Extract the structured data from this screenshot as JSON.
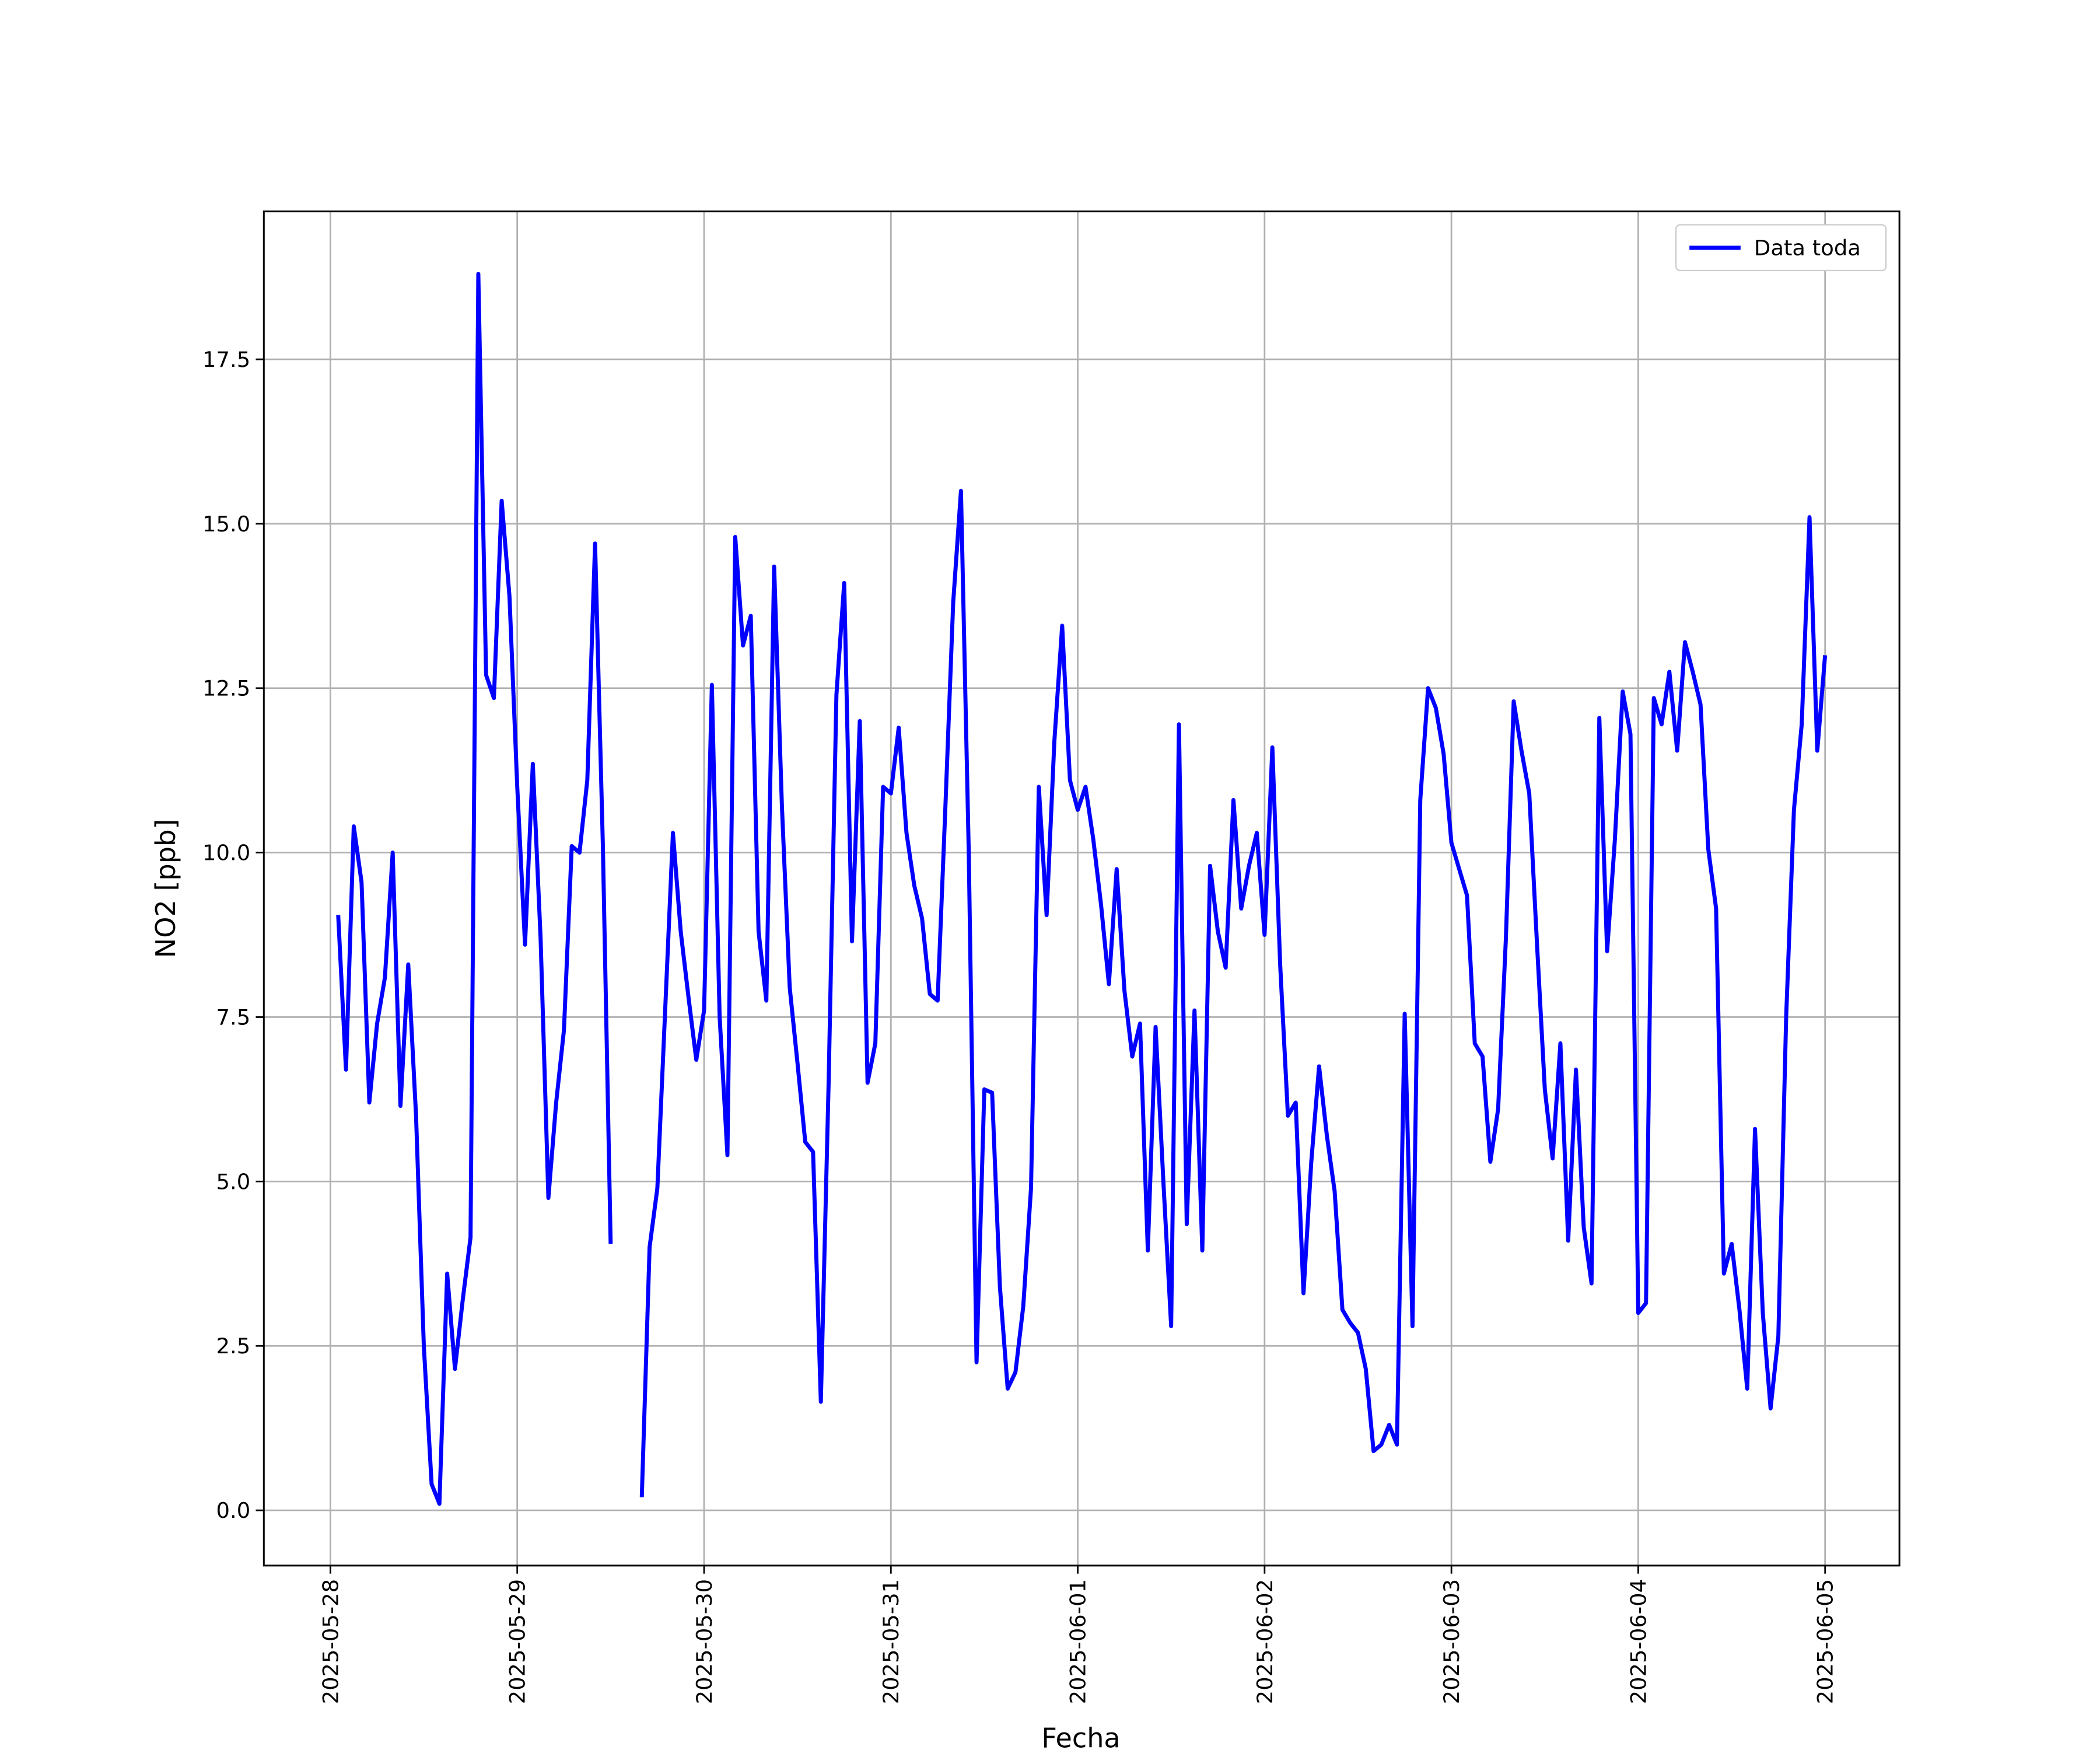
{
  "chart_data": {
    "type": "line",
    "xlabel": "Fecha",
    "ylabel": "NO2 [ppb]",
    "x": [
      "2025-05-28 01:00",
      "2025-05-28 02:00",
      "2025-05-28 03:00",
      "2025-05-28 04:00",
      "2025-05-28 05:00",
      "2025-05-28 06:00",
      "2025-05-28 07:00",
      "2025-05-28 08:00",
      "2025-05-28 09:00",
      "2025-05-28 10:00",
      "2025-05-28 11:00",
      "2025-05-28 12:00",
      "2025-05-28 13:00",
      "2025-05-28 14:00",
      "2025-05-28 15:00",
      "2025-05-28 16:00",
      "2025-05-28 17:00",
      "2025-05-28 18:00",
      "2025-05-28 19:00",
      "2025-05-28 20:00",
      "2025-05-28 21:00",
      "2025-05-28 22:00",
      "2025-05-28 23:00",
      "2025-05-29 00:00",
      "2025-05-29 01:00",
      "2025-05-29 02:00",
      "2025-05-29 03:00",
      "2025-05-29 04:00",
      "2025-05-29 05:00",
      "2025-05-29 06:00",
      "2025-05-29 07:00",
      "2025-05-29 08:00",
      "2025-05-29 09:00",
      "2025-05-29 10:00",
      "2025-05-29 11:00",
      "2025-05-29 12:00",
      "2025-05-29 13:00",
      "2025-05-29 14:00",
      "2025-05-29 15:00",
      "2025-05-29 16:00",
      "2025-05-29 17:00",
      "2025-05-29 18:00",
      "2025-05-29 19:00",
      "2025-05-29 20:00",
      "2025-05-29 21:00",
      "2025-05-29 22:00",
      "2025-05-29 23:00",
      "2025-05-30 00:00",
      "2025-05-30 01:00",
      "2025-05-30 02:00",
      "2025-05-30 03:00",
      "2025-05-30 04:00",
      "2025-05-30 05:00",
      "2025-05-30 06:00",
      "2025-05-30 07:00",
      "2025-05-30 08:00",
      "2025-05-30 09:00",
      "2025-05-30 10:00",
      "2025-05-30 11:00",
      "2025-05-30 12:00",
      "2025-05-30 13:00",
      "2025-05-30 14:00",
      "2025-05-30 15:00",
      "2025-05-30 16:00",
      "2025-05-30 17:00",
      "2025-05-30 18:00",
      "2025-05-30 19:00",
      "2025-05-30 20:00",
      "2025-05-30 21:00",
      "2025-05-30 22:00",
      "2025-05-30 23:00",
      "2025-05-31 00:00",
      "2025-05-31 01:00",
      "2025-05-31 02:00",
      "2025-05-31 03:00",
      "2025-05-31 04:00",
      "2025-05-31 05:00",
      "2025-05-31 06:00",
      "2025-05-31 07:00",
      "2025-05-31 08:00",
      "2025-05-31 09:00",
      "2025-05-31 10:00",
      "2025-05-31 11:00",
      "2025-05-31 12:00",
      "2025-05-31 13:00",
      "2025-05-31 14:00",
      "2025-05-31 15:00",
      "2025-05-31 16:00",
      "2025-05-31 17:00",
      "2025-05-31 18:00",
      "2025-05-31 19:00",
      "2025-05-31 20:00",
      "2025-05-31 21:00",
      "2025-05-31 22:00",
      "2025-05-31 23:00",
      "2025-06-01 00:00",
      "2025-06-01 01:00",
      "2025-06-01 02:00",
      "2025-06-01 03:00",
      "2025-06-01 04:00",
      "2025-06-01 05:00",
      "2025-06-01 06:00",
      "2025-06-01 07:00",
      "2025-06-01 08:00",
      "2025-06-01 09:00",
      "2025-06-01 10:00",
      "2025-06-01 11:00",
      "2025-06-01 12:00",
      "2025-06-01 13:00",
      "2025-06-01 14:00",
      "2025-06-01 15:00",
      "2025-06-01 16:00",
      "2025-06-01 17:00",
      "2025-06-01 18:00",
      "2025-06-01 19:00",
      "2025-06-01 20:00",
      "2025-06-01 21:00",
      "2025-06-01 22:00",
      "2025-06-01 23:00",
      "2025-06-02 00:00",
      "2025-06-02 01:00",
      "2025-06-02 02:00",
      "2025-06-02 03:00",
      "2025-06-02 04:00",
      "2025-06-02 05:00",
      "2025-06-02 06:00",
      "2025-06-02 07:00",
      "2025-06-02 08:00",
      "2025-06-02 09:00",
      "2025-06-02 10:00",
      "2025-06-02 11:00",
      "2025-06-02 12:00",
      "2025-06-02 13:00",
      "2025-06-02 14:00",
      "2025-06-02 15:00",
      "2025-06-02 16:00",
      "2025-06-02 17:00",
      "2025-06-02 18:00",
      "2025-06-02 19:00",
      "2025-06-02 20:00",
      "2025-06-02 21:00",
      "2025-06-02 22:00",
      "2025-06-02 23:00",
      "2025-06-03 00:00",
      "2025-06-03 01:00",
      "2025-06-03 02:00",
      "2025-06-03 03:00",
      "2025-06-03 04:00",
      "2025-06-03 05:00",
      "2025-06-03 06:00",
      "2025-06-03 07:00",
      "2025-06-03 08:00",
      "2025-06-03 09:00",
      "2025-06-03 10:00",
      "2025-06-03 11:00",
      "2025-06-03 12:00",
      "2025-06-03 13:00",
      "2025-06-03 14:00",
      "2025-06-03 15:00",
      "2025-06-03 16:00",
      "2025-06-03 17:00",
      "2025-06-03 18:00",
      "2025-06-03 19:00",
      "2025-06-03 20:00",
      "2025-06-03 21:00",
      "2025-06-03 22:00",
      "2025-06-03 23:00",
      "2025-06-04 00:00",
      "2025-06-04 01:00",
      "2025-06-04 02:00",
      "2025-06-04 03:00",
      "2025-06-04 04:00",
      "2025-06-04 05:00",
      "2025-06-04 06:00",
      "2025-06-04 07:00",
      "2025-06-04 08:00",
      "2025-06-04 09:00",
      "2025-06-04 10:00",
      "2025-06-04 11:00",
      "2025-06-04 12:00",
      "2025-06-04 13:00",
      "2025-06-04 14:00",
      "2025-06-04 15:00",
      "2025-06-04 16:00",
      "2025-06-04 17:00",
      "2025-06-04 18:00",
      "2025-06-04 19:00",
      "2025-06-04 20:00",
      "2025-06-04 21:00",
      "2025-06-04 22:00",
      "2025-06-04 23:00",
      "2025-06-05 00:00"
    ],
    "series": [
      {
        "name": "Data toda",
        "color": "#0000ff",
        "values": [
          9.05,
          6.7,
          10.4,
          9.55,
          6.2,
          7.4,
          8.1,
          10.0,
          6.15,
          8.3,
          6.0,
          2.5,
          0.4,
          0.1,
          3.6,
          2.15,
          3.2,
          4.15,
          18.8,
          12.7,
          12.35,
          15.35,
          13.9,
          11.0,
          8.6,
          11.35,
          8.7,
          4.75,
          6.2,
          7.3,
          10.1,
          10.0,
          11.1,
          14.7,
          10.1,
          4.05,
          null,
          null,
          null,
          0.2,
          4.0,
          4.9,
          7.6,
          10.3,
          8.8,
          7.8,
          6.85,
          7.6,
          12.55,
          7.5,
          5.4,
          14.8,
          13.15,
          13.6,
          8.8,
          7.75,
          14.35,
          10.7,
          7.95,
          6.8,
          5.6,
          5.45,
          1.65,
          6.5,
          12.4,
          14.1,
          8.65,
          12.0,
          6.5,
          7.1,
          11.0,
          10.9,
          11.9,
          10.3,
          9.5,
          9.0,
          7.85,
          7.75,
          10.7,
          13.8,
          15.5,
          10.0,
          2.25,
          6.4,
          6.35,
          3.4,
          1.85,
          2.1,
          3.1,
          4.9,
          11.0,
          9.05,
          11.7,
          13.45,
          11.1,
          10.65,
          11.0,
          10.2,
          9.2,
          8.0,
          9.75,
          7.9,
          6.9,
          7.4,
          3.95,
          7.35,
          5.0,
          2.8,
          11.95,
          4.35,
          7.6,
          3.95,
          9.8,
          8.8,
          8.25,
          10.8,
          9.15,
          9.8,
          10.3,
          8.75,
          11.6,
          8.3,
          6.0,
          6.2,
          3.3,
          5.3,
          6.75,
          5.7,
          4.85,
          3.05,
          2.85,
          2.7,
          2.15,
          0.9,
          1.0,
          1.3,
          1.0,
          7.55,
          2.8,
          10.8,
          12.5,
          12.2,
          11.5,
          10.15,
          9.75,
          9.35,
          7.1,
          6.9,
          5.3,
          6.1,
          8.7,
          12.3,
          11.55,
          10.9,
          8.6,
          6.4,
          5.35,
          7.1,
          4.1,
          6.7,
          4.3,
          3.45,
          12.05,
          8.5,
          10.2,
          12.45,
          11.8,
          3.0,
          3.15,
          12.35,
          11.95,
          12.75,
          11.55,
          13.2,
          12.75,
          12.25,
          10.05,
          9.15,
          3.6,
          4.05,
          3.05,
          1.85,
          5.8,
          3.0,
          1.55,
          2.65,
          7.5,
          10.65,
          11.95,
          15.1,
          11.55,
          13.0
        ]
      }
    ],
    "xlim": [
      "2025-05-27 15:27",
      "2025-06-05 09:33"
    ],
    "xticks": [
      "2025-05-28",
      "2025-05-29",
      "2025-05-30",
      "2025-05-31",
      "2025-06-01",
      "2025-06-02",
      "2025-06-03",
      "2025-06-04",
      "2025-06-05"
    ],
    "ylim": [
      -0.84,
      19.75
    ],
    "yticks": [
      {
        "value": 0,
        "label": "0.0"
      },
      2.5,
      {
        "value": 5,
        "label": "5.0"
      },
      7.5,
      {
        "value": 10,
        "label": "10.0"
      },
      12.5,
      {
        "value": 15,
        "label": "15.0"
      },
      17.5
    ],
    "grid": true,
    "legend": "upper right"
  }
}
